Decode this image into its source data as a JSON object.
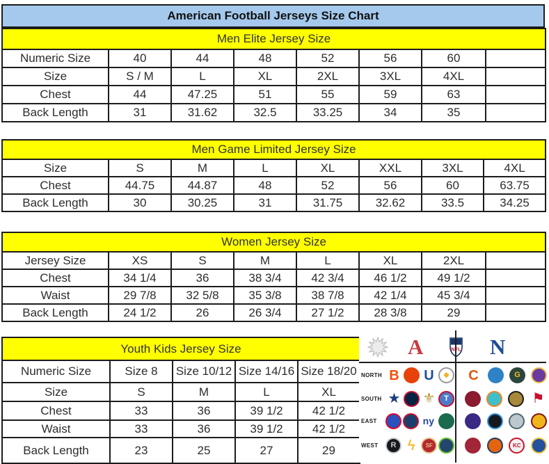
{
  "page": {
    "title": "American Football Jerseys Size Chart"
  },
  "colors": {
    "title_bg": "#A5C9EC",
    "section_band_bg": "#FFFF00",
    "border": "#1C1C1C",
    "afc_red": "#C93A40",
    "nfc_blue": "#1E4C95"
  },
  "tables": [
    {
      "id": "men-elite",
      "title": "Men Elite Jersey Size",
      "rows": [
        [
          "Numeric Size",
          "40",
          "44",
          "48",
          "52",
          "56",
          "60",
          ""
        ],
        [
          "Size",
          "S / M",
          "L",
          "XL",
          "2XL",
          "3XL",
          "4XL",
          ""
        ],
        [
          "Chest",
          "44",
          "47.25",
          "51",
          "55",
          "59",
          "63",
          ""
        ],
        [
          "Back Length",
          "31",
          "31.62",
          "32.5",
          "33.25",
          "34",
          "35",
          ""
        ]
      ]
    },
    {
      "id": "men-game-limited",
      "title": "Men Game Limited Jersey Size",
      "rows": [
        [
          "Size",
          "S",
          "M",
          "L",
          "XL",
          "XXL",
          "3XL",
          "4XL"
        ],
        [
          "Chest",
          "44.75",
          "44.87",
          "48",
          "52",
          "56",
          "60",
          "63.75"
        ],
        [
          "Back Length",
          "30",
          "30.25",
          "31",
          "31.75",
          "32.62",
          "33.5",
          "34.25"
        ]
      ]
    },
    {
      "id": "women",
      "title": "Women Jersey Size",
      "rows": [
        [
          "Jersey Size",
          "XS",
          "S",
          "M",
          "L",
          "XL",
          "2XL",
          ""
        ],
        [
          "Chest",
          "34 1/4",
          "36",
          "38 3/4",
          "42 3/4",
          "46 1/2",
          "49 1/2",
          ""
        ],
        [
          "Waist",
          "29 7/8",
          "32 5/8",
          "35 3/8",
          "38 7/8",
          "42 1/4",
          "45 3/4",
          ""
        ],
        [
          "Back Length",
          "24 1/2",
          "26",
          "26 3/4",
          "27 1/2",
          "28 3/8",
          "29",
          ""
        ]
      ]
    },
    {
      "id": "youth-kids",
      "title": "Youth Kids Jersey Size",
      "rows": [
        [
          "Numeric Size",
          "Size 8",
          "Size 10/12",
          "Size 14/16",
          "Size 18/20"
        ],
        [
          "Size",
          "S",
          "M",
          "L",
          "XL"
        ],
        [
          "Chest",
          "33",
          "36",
          "39 1/2",
          "42 1/2"
        ],
        [
          "Waist",
          "33",
          "36",
          "39 1/2",
          "42 1/2"
        ],
        [
          "Back Length",
          "23",
          "25",
          "27",
          "29"
        ]
      ]
    }
  ],
  "logos_panel": {
    "starburst_icon": "starburst",
    "afc_letter": "A",
    "nfl_label": "NFL",
    "nfc_letter": "N",
    "divisions": [
      {
        "label": "NORTH",
        "afc": [
          {
            "name": "bengals",
            "glyph": "B",
            "fg": "#F0500F",
            "bg": "none"
          },
          {
            "name": "browns",
            "glyph": "",
            "fg": "#FFFFFF",
            "bg": "#E8420B"
          },
          {
            "name": "colts",
            "glyph": "U",
            "fg": "#1D4F9C",
            "bg": "none"
          },
          {
            "name": "steelers",
            "glyph": "◆",
            "fg": "#F0B32A",
            "bg": "#FFFFFF",
            "bd": "#9A9A9A"
          }
        ],
        "nfc": [
          {
            "name": "bears",
            "glyph": "C",
            "fg": "#E3560E",
            "bg": "none"
          },
          {
            "name": "lions",
            "glyph": "",
            "fg": "#FFFFFF",
            "bg": "#2E82C6"
          },
          {
            "name": "packers",
            "glyph": "G",
            "fg": "#F5BE2A",
            "bg": "#2C463C"
          },
          {
            "name": "vikings",
            "glyph": "",
            "fg": "#F0C244",
            "bg": "#6A3AA0",
            "bd": "#F0C244"
          }
        ]
      },
      {
        "label": "SOUTH",
        "afc": [
          {
            "name": "cowboys",
            "glyph": "★",
            "fg": "#1D3E7C",
            "bg": "none"
          },
          {
            "name": "texans",
            "glyph": "",
            "fg": "#FFFFFF",
            "bg": "#0A2342",
            "bd": "#C8102E"
          },
          {
            "name": "saints",
            "glyph": "⚜",
            "fg": "#B99A45",
            "bg": "none"
          },
          {
            "name": "titans",
            "glyph": "T",
            "fg": "#FFFFFF",
            "bg": "#4B7BC8",
            "bd": "#C8102E"
          }
        ],
        "nfc": [
          {
            "name": "falcons",
            "glyph": "",
            "fg": "#FFFFFF",
            "bg": "#8C1B2F"
          },
          {
            "name": "dolphins",
            "glyph": "",
            "fg": "#FFFFFF",
            "bg": "#3FBFC9",
            "bd": "#F58220"
          },
          {
            "name": "jaguars",
            "glyph": "",
            "fg": "#006778",
            "bg": "#A8893B",
            "bd": "#1A1A1A"
          },
          {
            "name": "buccaneers",
            "glyph": "⚑",
            "fg": "#C8102E",
            "bg": "none"
          }
        ]
      },
      {
        "label": "EAST",
        "afc": [
          {
            "name": "bills",
            "glyph": "",
            "fg": "#FFFFFF",
            "bg": "#2A52BE",
            "bd": "#E4002B"
          },
          {
            "name": "patriots",
            "glyph": "",
            "fg": "#FFFFFF",
            "bg": "#1D3E6B",
            "bd": "#C8102E"
          },
          {
            "name": "giants",
            "glyph": "ny",
            "fg": "#26479B",
            "bg": "none"
          },
          {
            "name": "jets",
            "glyph": "",
            "fg": "#FFFFFF",
            "bg": "#1C6B4E"
          }
        ],
        "nfc": [
          {
            "name": "ravens",
            "glyph": "",
            "fg": "#D0B240",
            "bg": "#3B2A84"
          },
          {
            "name": "panthers",
            "glyph": "",
            "fg": "#2F95DD",
            "bg": "#15191F",
            "bd": "#2F95DD"
          },
          {
            "name": "eagles",
            "glyph": "",
            "fg": "#1E5A63",
            "bg": "#BCC8CE",
            "bd": "#50666E"
          },
          {
            "name": "redskins",
            "glyph": "",
            "fg": "#7E1415",
            "bg": "#F1B51C",
            "bd": "#7E1415"
          }
        ]
      },
      {
        "label": "WEST",
        "afc": [
          {
            "name": "raiders",
            "glyph": "R",
            "fg": "#C6CACF",
            "bg": "#17181C",
            "bd": "#C6CACF"
          },
          {
            "name": "chargers",
            "glyph": "ϟ",
            "fg": "#F3C131",
            "bg": "none"
          },
          {
            "name": "49ers",
            "glyph": "SF",
            "fg": "#E9C189",
            "bg": "#B3282D",
            "bd": "#E9C189"
          },
          {
            "name": "seahawks",
            "glyph": "",
            "fg": "#69BE28",
            "bg": "#24456E",
            "bd": "#69BE28"
          }
        ],
        "nfc": [
          {
            "name": "cardinals",
            "glyph": "",
            "fg": "#FFFFFF",
            "bg": "#A32638"
          },
          {
            "name": "broncos",
            "glyph": "",
            "fg": "#FFFFFF",
            "bg": "#E4640E",
            "bd": "#1D3E6B"
          },
          {
            "name": "chiefs",
            "glyph": "KC",
            "fg": "#CE1126",
            "bg": "#F2F2F2",
            "bd": "#CE1126"
          },
          {
            "name": "rams",
            "glyph": "",
            "fg": "#EFC53F",
            "bg": "#25519E",
            "bd": "#EFC53F"
          }
        ]
      }
    ]
  }
}
